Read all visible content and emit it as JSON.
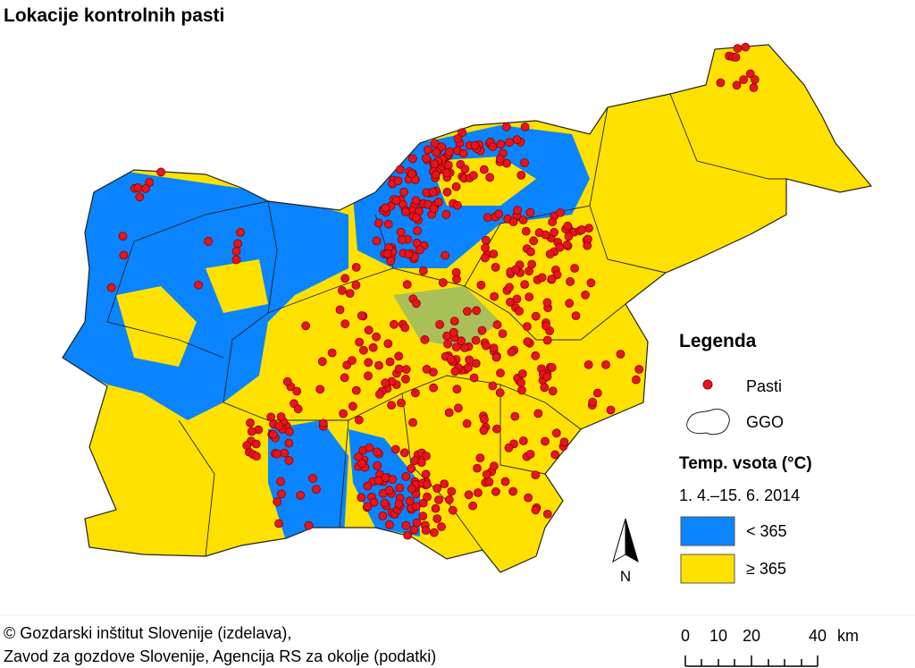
{
  "title": "Lokacije kontrolnih pasti",
  "legend": {
    "title": "Legenda",
    "items": [
      "Pasti",
      "GGO"
    ],
    "temp_title": "Temp. vsota (°C)",
    "period": "1. 4.–15. 6. 2014",
    "classes": [
      "< 365",
      "≥ 365"
    ]
  },
  "north": "N",
  "credits": [
    "© Gozdarski inštitut Slovenije (izdelava),",
    "Zavod za gozdove Slovenije, Agencija RS za okolje (podatki)"
  ],
  "scale": {
    "labels": [
      "0",
      "10",
      "20",
      "40"
    ],
    "unit": "km"
  }
}
